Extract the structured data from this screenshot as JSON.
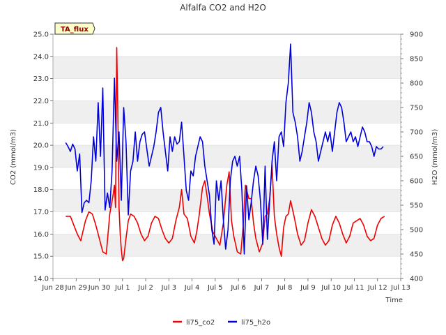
{
  "chart_data": {
    "type": "line",
    "title": "Alfalfa CO2 and H2O",
    "xlabel": "Time",
    "ylabel_left": "CO2 (mmol/m3)",
    "ylabel_right": "H2O (mmol/m3)",
    "badge": "TA_flux",
    "grid": "horizontal bands",
    "legend_placement": "bottom-center",
    "xlim": [
      0,
      15
    ],
    "ylim_left": [
      14.0,
      25.0
    ],
    "ylim_right": [
      400,
      900
    ],
    "x_ticks": [
      {
        "x": 0,
        "label": "Jun 28"
      },
      {
        "x": 1,
        "label": "Jun 29"
      },
      {
        "x": 2,
        "label": "Jun 30"
      },
      {
        "x": 3,
        "label": "Jul 1"
      },
      {
        "x": 4,
        "label": "Jul 2"
      },
      {
        "x": 5,
        "label": "Jul 3"
      },
      {
        "x": 6,
        "label": "Jul 4"
      },
      {
        "x": 7,
        "label": "Jul 5"
      },
      {
        "x": 8,
        "label": "Jul 6"
      },
      {
        "x": 9,
        "label": "Jul 7"
      },
      {
        "x": 10,
        "label": "Jul 8"
      },
      {
        "x": 11,
        "label": "Jul 9"
      },
      {
        "x": 12,
        "label": "Jul 10"
      },
      {
        "x": 13,
        "label": "Jul 11"
      },
      {
        "x": 14,
        "label": "Jul 12"
      },
      {
        "x": 15,
        "label": "Jul 13"
      }
    ],
    "y_left_ticks": [
      {
        "v": 14.0,
        "label": "14.0"
      },
      {
        "v": 15.0,
        "label": "15.0"
      },
      {
        "v": 16.0,
        "label": "16.0"
      },
      {
        "v": 17.0,
        "label": "17.0"
      },
      {
        "v": 18.0,
        "label": "18.0"
      },
      {
        "v": 19.0,
        "label": "19.0"
      },
      {
        "v": 20.0,
        "label": "20.0"
      },
      {
        "v": 21.0,
        "label": "21.0"
      },
      {
        "v": 22.0,
        "label": "22.0"
      },
      {
        "v": 23.0,
        "label": "23.0"
      },
      {
        "v": 24.0,
        "label": "24.0"
      },
      {
        "v": 25.0,
        "label": "25.0"
      }
    ],
    "y_right_ticks": [
      {
        "v": 400,
        "label": "400"
      },
      {
        "v": 450,
        "label": "450"
      },
      {
        "v": 500,
        "label": "500"
      },
      {
        "v": 550,
        "label": "550"
      },
      {
        "v": 600,
        "label": "600"
      },
      {
        "v": 650,
        "label": "650"
      },
      {
        "v": 700,
        "label": "700"
      },
      {
        "v": 750,
        "label": "750"
      },
      {
        "v": 800,
        "label": "800"
      },
      {
        "v": 850,
        "label": "850"
      },
      {
        "v": 900,
        "label": "900"
      }
    ],
    "series": [
      {
        "name": "li75_co2",
        "axis": "left",
        "color": "#ee0000",
        "x": [
          0.55,
          0.75,
          0.9,
          1.05,
          1.2,
          1.4,
          1.55,
          1.7,
          1.85,
          2.0,
          2.15,
          2.3,
          2.45,
          2.6,
          2.65,
          2.7,
          2.75,
          2.8,
          2.85,
          2.9,
          2.95,
          3.0,
          3.05,
          3.15,
          3.25,
          3.35,
          3.5,
          3.65,
          3.8,
          3.95,
          4.1,
          4.25,
          4.4,
          4.55,
          4.7,
          4.85,
          5.0,
          5.15,
          5.3,
          5.45,
          5.55,
          5.65,
          5.8,
          5.95,
          6.1,
          6.2,
          6.3,
          6.45,
          6.55,
          6.65,
          6.75,
          6.9,
          7.05,
          7.2,
          7.35,
          7.5,
          7.6,
          7.7,
          7.8,
          7.95,
          8.1,
          8.2,
          8.3,
          8.45,
          8.55,
          8.65,
          8.75,
          8.9,
          9.05,
          9.15,
          9.25,
          9.35,
          9.45,
          9.55,
          9.65,
          9.75,
          9.85,
          9.95,
          10.05,
          10.15,
          10.25,
          10.4,
          10.55,
          10.7,
          10.85,
          11.0,
          11.15,
          11.3,
          11.45,
          11.6,
          11.75,
          11.9,
          12.05,
          12.2,
          12.35,
          12.5,
          12.65,
          12.8,
          12.95,
          13.1,
          13.25,
          13.4,
          13.55,
          13.7,
          13.85,
          14.0,
          14.15,
          14.3
        ],
        "y": [
          16.8,
          16.8,
          16.4,
          16.0,
          15.7,
          16.6,
          17.0,
          16.9,
          16.4,
          15.8,
          15.2,
          15.1,
          16.9,
          17.8,
          18.2,
          17.2,
          24.4,
          21.5,
          17.2,
          16.0,
          15.3,
          14.8,
          14.9,
          15.8,
          16.6,
          16.9,
          16.8,
          16.5,
          16.0,
          15.7,
          15.9,
          16.5,
          16.8,
          16.7,
          16.2,
          15.8,
          15.6,
          15.8,
          16.6,
          17.2,
          18.0,
          16.9,
          16.7,
          15.9,
          15.6,
          16.1,
          16.8,
          18.1,
          18.4,
          17.7,
          16.9,
          16.1,
          15.8,
          15.5,
          16.5,
          18.2,
          18.8,
          16.6,
          15.9,
          15.2,
          15.1,
          16.3,
          18.2,
          17.6,
          17.6,
          16.5,
          15.8,
          15.2,
          15.6,
          16.8,
          16.9,
          17.6,
          19.1,
          16.8,
          16.0,
          15.4,
          15.0,
          16.3,
          16.8,
          16.9,
          17.5,
          16.8,
          16.0,
          15.5,
          15.7,
          16.5,
          17.1,
          16.8,
          16.3,
          15.8,
          15.5,
          15.7,
          16.4,
          16.8,
          16.5,
          16.0,
          15.6,
          15.9,
          16.5,
          16.6,
          16.7,
          16.4,
          15.9,
          15.7,
          15.8,
          16.4,
          16.7,
          16.8
        ]
      },
      {
        "name": "li75_h2o",
        "axis": "right",
        "color": "#0000dd",
        "x": [
          0.55,
          0.65,
          0.75,
          0.85,
          0.95,
          1.05,
          1.15,
          1.25,
          1.35,
          1.45,
          1.55,
          1.65,
          1.75,
          1.85,
          1.95,
          2.05,
          2.15,
          2.25,
          2.35,
          2.45,
          2.55,
          2.65,
          2.75,
          2.85,
          2.95,
          3.05,
          3.15,
          3.25,
          3.35,
          3.45,
          3.55,
          3.65,
          3.75,
          3.85,
          3.95,
          4.05,
          4.15,
          4.25,
          4.35,
          4.45,
          4.55,
          4.65,
          4.75,
          4.85,
          4.95,
          5.05,
          5.15,
          5.25,
          5.35,
          5.45,
          5.55,
          5.65,
          5.75,
          5.85,
          5.95,
          6.05,
          6.15,
          6.25,
          6.35,
          6.45,
          6.55,
          6.65,
          6.75,
          6.85,
          6.95,
          7.05,
          7.15,
          7.25,
          7.35,
          7.45,
          7.55,
          7.65,
          7.75,
          7.85,
          7.95,
          8.05,
          8.15,
          8.25,
          8.35,
          8.45,
          8.55,
          8.65,
          8.75,
          8.85,
          8.95,
          9.05,
          9.15,
          9.25,
          9.35,
          9.45,
          9.55,
          9.65,
          9.75,
          9.85,
          9.95,
          10.05,
          10.15,
          10.25,
          10.35,
          10.45,
          10.55,
          10.65,
          10.75,
          10.85,
          10.95,
          11.05,
          11.15,
          11.25,
          11.35,
          11.45,
          11.55,
          11.65,
          11.75,
          11.85,
          11.95,
          12.05,
          12.15,
          12.25,
          12.35,
          12.45,
          12.55,
          12.65,
          12.75,
          12.85,
          12.95,
          13.05,
          13.15,
          13.25,
          13.35,
          13.45,
          13.55,
          13.65,
          13.75,
          13.85,
          13.95,
          14.05,
          14.15,
          14.25
        ],
        "y": [
          678,
          670,
          660,
          675,
          665,
          620,
          655,
          535,
          555,
          560,
          555,
          600,
          690,
          640,
          760,
          650,
          790,
          540,
          575,
          545,
          620,
          810,
          640,
          700,
          560,
          750,
          680,
          530,
          620,
          640,
          700,
          640,
          680,
          695,
          700,
          665,
          630,
          650,
          670,
          700,
          740,
          750,
          700,
          660,
          620,
          690,
          660,
          690,
          675,
          680,
          720,
          650,
          580,
          560,
          620,
          610,
          650,
          670,
          690,
          680,
          630,
          600,
          570,
          500,
          470,
          600,
          560,
          600,
          520,
          460,
          500,
          600,
          640,
          650,
          630,
          650,
          580,
          450,
          590,
          520,
          555,
          600,
          630,
          610,
          560,
          470,
          630,
          480,
          560,
          640,
          680,
          600,
          690,
          700,
          670,
          760,
          800,
          880,
          740,
          720,
          690,
          640,
          660,
          690,
          720,
          760,
          740,
          700,
          680,
          640,
          660,
          680,
          700,
          680,
          700,
          660,
          700,
          740,
          760,
          750,
          720,
          680,
          690,
          700,
          680,
          690,
          670,
          690,
          710,
          700,
          680,
          680,
          670,
          650,
          670,
          665,
          665,
          670
        ]
      }
    ]
  }
}
